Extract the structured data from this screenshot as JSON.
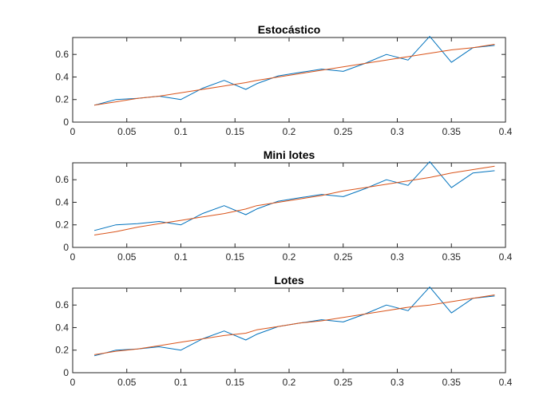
{
  "chart_data": [
    {
      "type": "line",
      "title": "Estocástico",
      "xlabel": "",
      "ylabel": "",
      "xlim": [
        0,
        0.4
      ],
      "ylim": [
        0,
        0.75
      ],
      "xticks": [
        0,
        0.05,
        0.1,
        0.15,
        0.2,
        0.25,
        0.3,
        0.35,
        0.4
      ],
      "xtick_labels": [
        "0",
        "0.05",
        "0.1",
        "0.15",
        "0.2",
        "0.25",
        "0.3",
        "0.35",
        "0.4"
      ],
      "yticks": [
        0,
        0.2,
        0.4,
        0.6
      ],
      "ytick_labels": [
        "0",
        "0.2",
        "0.4",
        "0.6"
      ],
      "grid": false,
      "series": [
        {
          "color": "#0072BD",
          "x": [
            0.02,
            0.04,
            0.06,
            0.08,
            0.1,
            0.12,
            0.14,
            0.16,
            0.17,
            0.19,
            0.21,
            0.23,
            0.25,
            0.27,
            0.29,
            0.31,
            0.33,
            0.35,
            0.37,
            0.39
          ],
          "y": [
            0.15,
            0.2,
            0.21,
            0.23,
            0.2,
            0.3,
            0.37,
            0.29,
            0.34,
            0.41,
            0.44,
            0.47,
            0.45,
            0.52,
            0.6,
            0.55,
            0.76,
            0.53,
            0.66,
            0.68
          ]
        },
        {
          "color": "#D95319",
          "x": [
            0.02,
            0.04,
            0.06,
            0.08,
            0.1,
            0.12,
            0.14,
            0.16,
            0.17,
            0.19,
            0.21,
            0.23,
            0.25,
            0.27,
            0.29,
            0.31,
            0.33,
            0.35,
            0.37,
            0.39
          ],
          "y": [
            0.15,
            0.18,
            0.21,
            0.23,
            0.26,
            0.29,
            0.32,
            0.35,
            0.37,
            0.4,
            0.43,
            0.46,
            0.49,
            0.52,
            0.55,
            0.58,
            0.61,
            0.64,
            0.66,
            0.69
          ]
        }
      ]
    },
    {
      "type": "line",
      "title": "Mini lotes",
      "xlabel": "",
      "ylabel": "",
      "xlim": [
        0,
        0.4
      ],
      "ylim": [
        0,
        0.75
      ],
      "xticks": [
        0,
        0.05,
        0.1,
        0.15,
        0.2,
        0.25,
        0.3,
        0.35,
        0.4
      ],
      "xtick_labels": [
        "0",
        "0.05",
        "0.1",
        "0.15",
        "0.2",
        "0.25",
        "0.3",
        "0.35",
        "0.4"
      ],
      "yticks": [
        0,
        0.2,
        0.4,
        0.6
      ],
      "ytick_labels": [
        "0",
        "0.2",
        "0.4",
        "0.6"
      ],
      "grid": false,
      "series": [
        {
          "color": "#0072BD",
          "x": [
            0.02,
            0.04,
            0.06,
            0.08,
            0.1,
            0.12,
            0.14,
            0.16,
            0.17,
            0.19,
            0.21,
            0.23,
            0.25,
            0.27,
            0.29,
            0.31,
            0.33,
            0.35,
            0.37,
            0.39
          ],
          "y": [
            0.15,
            0.2,
            0.21,
            0.23,
            0.2,
            0.3,
            0.37,
            0.29,
            0.34,
            0.41,
            0.44,
            0.47,
            0.45,
            0.52,
            0.6,
            0.55,
            0.76,
            0.53,
            0.66,
            0.68
          ]
        },
        {
          "color": "#D95319",
          "x": [
            0.02,
            0.04,
            0.06,
            0.08,
            0.1,
            0.12,
            0.14,
            0.16,
            0.17,
            0.19,
            0.21,
            0.23,
            0.25,
            0.27,
            0.29,
            0.31,
            0.33,
            0.35,
            0.37,
            0.39
          ],
          "y": [
            0.11,
            0.14,
            0.18,
            0.21,
            0.24,
            0.27,
            0.3,
            0.34,
            0.37,
            0.4,
            0.43,
            0.46,
            0.5,
            0.53,
            0.56,
            0.59,
            0.62,
            0.66,
            0.69,
            0.72
          ]
        }
      ]
    },
    {
      "type": "line",
      "title": "Lotes",
      "xlabel": "",
      "ylabel": "",
      "xlim": [
        0,
        0.4
      ],
      "ylim": [
        0,
        0.75
      ],
      "xticks": [
        0,
        0.05,
        0.1,
        0.15,
        0.2,
        0.25,
        0.3,
        0.35,
        0.4
      ],
      "xtick_labels": [
        "0",
        "0.05",
        "0.1",
        "0.15",
        "0.2",
        "0.25",
        "0.3",
        "0.35",
        "0.4"
      ],
      "yticks": [
        0,
        0.2,
        0.4,
        0.6
      ],
      "ytick_labels": [
        "0",
        "0.2",
        "0.4",
        "0.6"
      ],
      "grid": false,
      "series": [
        {
          "color": "#0072BD",
          "x": [
            0.02,
            0.04,
            0.06,
            0.08,
            0.1,
            0.12,
            0.14,
            0.16,
            0.17,
            0.19,
            0.21,
            0.23,
            0.25,
            0.27,
            0.29,
            0.31,
            0.33,
            0.35,
            0.37,
            0.39
          ],
          "y": [
            0.15,
            0.2,
            0.21,
            0.23,
            0.2,
            0.3,
            0.37,
            0.29,
            0.34,
            0.41,
            0.44,
            0.47,
            0.45,
            0.52,
            0.6,
            0.55,
            0.76,
            0.53,
            0.66,
            0.68
          ]
        },
        {
          "color": "#D95319",
          "x": [
            0.02,
            0.04,
            0.06,
            0.08,
            0.1,
            0.12,
            0.14,
            0.16,
            0.17,
            0.19,
            0.21,
            0.23,
            0.25,
            0.27,
            0.29,
            0.31,
            0.33,
            0.35,
            0.37,
            0.39
          ],
          "y": [
            0.16,
            0.19,
            0.21,
            0.24,
            0.27,
            0.3,
            0.33,
            0.35,
            0.38,
            0.41,
            0.44,
            0.46,
            0.49,
            0.52,
            0.55,
            0.58,
            0.6,
            0.63,
            0.66,
            0.69
          ]
        }
      ]
    }
  ]
}
